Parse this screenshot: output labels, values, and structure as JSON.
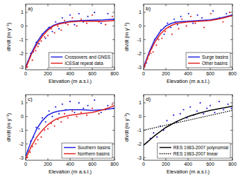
{
  "chart_data": [
    {
      "type": "scatter",
      "panel_label": "a)",
      "xlabel": "Elevation (m a.s.l.)",
      "ylabel": "dh/dt (m y⁻¹)",
      "xlim": [
        0,
        800
      ],
      "ylim": [
        -3.2,
        1.6
      ],
      "xticks": [
        0,
        200,
        400,
        600,
        800
      ],
      "yticks": [
        -3,
        -2,
        -1,
        0,
        1
      ],
      "grid": false,
      "legend": "lower right",
      "series": [
        {
          "type": "scatter",
          "color": "#e02020",
          "marker": "dot",
          "x": [
            15,
            40,
            60,
            90,
            110,
            140,
            170,
            200,
            230,
            260,
            290,
            320,
            350,
            380,
            420,
            460,
            500,
            550,
            600,
            660,
            720,
            780
          ],
          "values": [
            -3.0,
            -2.3,
            -2.5,
            -1.8,
            -1.5,
            -1.1,
            -0.8,
            -0.7,
            -0.2,
            -0.5,
            0.0,
            -0.3,
            0.4,
            0.1,
            0.6,
            0.0,
            0.5,
            0.2,
            0.8,
            0.3,
            0.1,
            0.7
          ]
        },
        {
          "type": "scatter",
          "color": "#2020e0",
          "marker": "dot",
          "x": [
            20,
            45,
            70,
            95,
            120,
            150,
            180,
            210,
            240,
            270,
            300,
            330,
            360,
            400,
            440,
            480,
            520,
            560,
            620,
            680,
            740,
            790
          ],
          "values": [
            -2.6,
            -2.0,
            -1.9,
            -1.2,
            -1.3,
            -0.6,
            -0.9,
            -0.1,
            -0.4,
            0.3,
            -0.2,
            0.6,
            0.2,
            0.8,
            0.1,
            0.9,
            0.3,
            0.7,
            1.0,
            0.2,
            0.9,
            0.5
          ]
        },
        {
          "type": "line",
          "name": "Crossovers and GNSS",
          "color": "#2020e0",
          "line_style": "solid",
          "x": [
            0,
            50,
            100,
            150,
            200,
            250,
            300,
            400,
            500,
            600,
            700,
            800
          ],
          "values": [
            -3.0,
            -2.0,
            -1.2,
            -0.6,
            -0.2,
            0.05,
            0.2,
            0.35,
            0.4,
            0.42,
            0.45,
            0.5
          ]
        },
        {
          "type": "line",
          "name": "ICESat repeat data",
          "color": "#e02020",
          "line_style": "solid",
          "x": [
            0,
            50,
            100,
            150,
            200,
            250,
            300,
            400,
            500,
            600,
            700,
            800
          ],
          "values": [
            -3.1,
            -2.1,
            -1.35,
            -0.75,
            -0.3,
            0.0,
            0.15,
            0.3,
            0.35,
            0.35,
            0.35,
            0.4
          ]
        }
      ]
    },
    {
      "type": "scatter",
      "panel_label": "b)",
      "xlabel": "Elevation (m a.s.l.)",
      "ylabel": "dh/dt (m y⁻¹)",
      "xlim": [
        0,
        800
      ],
      "ylim": [
        -3.2,
        1.6
      ],
      "xticks": [
        0,
        200,
        400,
        600,
        800
      ],
      "yticks": [
        -3,
        -2,
        -1,
        0,
        1
      ],
      "grid": false,
      "legend": "lower right",
      "series": [
        {
          "type": "scatter",
          "color": "#e02020",
          "marker": "dot",
          "x": [
            10,
            35,
            65,
            85,
            115,
            135,
            165,
            195,
            225,
            255,
            285,
            315,
            345,
            385,
            425,
            465,
            505,
            545,
            605,
            655,
            715,
            775
          ],
          "values": [
            -2.9,
            -2.4,
            -2.0,
            -1.9,
            -1.4,
            -1.0,
            -0.9,
            -0.4,
            -0.1,
            -0.6,
            0.3,
            -0.2,
            0.5,
            0.0,
            0.7,
            0.2,
            0.4,
            -0.1,
            0.9,
            0.5,
            0.3,
            1.0
          ]
        },
        {
          "type": "scatter",
          "color": "#2020e0",
          "marker": "dot",
          "x": [
            25,
            50,
            75,
            100,
            125,
            155,
            185,
            215,
            245,
            275,
            305,
            335,
            365,
            405,
            445,
            485,
            525,
            565,
            625,
            685,
            745,
            795
          ],
          "values": [
            -2.7,
            -2.1,
            -1.6,
            -1.0,
            -0.9,
            -0.3,
            -0.6,
            0.2,
            -0.1,
            0.5,
            0.1,
            0.7,
            0.3,
            0.9,
            0.2,
            0.8,
            0.6,
            0.4,
            1.1,
            0.6,
            0.9,
            0.8
          ]
        },
        {
          "type": "line",
          "name": "Surge basins",
          "color": "#2020e0",
          "line_style": "solid",
          "x": [
            0,
            50,
            100,
            150,
            200,
            250,
            300,
            400,
            500,
            600,
            700,
            800
          ],
          "values": [
            -3.0,
            -1.9,
            -1.0,
            -0.4,
            0.0,
            0.2,
            0.3,
            0.35,
            0.4,
            0.45,
            0.6,
            0.8
          ]
        },
        {
          "type": "line",
          "name": "Other basins",
          "color": "#e02020",
          "line_style": "solid",
          "x": [
            0,
            50,
            100,
            150,
            200,
            250,
            300,
            400,
            500,
            600,
            700,
            800
          ],
          "values": [
            -3.1,
            -2.0,
            -1.2,
            -0.6,
            -0.2,
            0.05,
            0.2,
            0.3,
            0.35,
            0.4,
            0.55,
            0.75
          ]
        }
      ]
    },
    {
      "type": "scatter",
      "panel_label": "c)",
      "xlabel": "Elevation (m a.s.l.)",
      "ylabel": "dh/dt (m y⁻¹)",
      "xlim": [
        0,
        800
      ],
      "ylim": [
        -3.2,
        1.6
      ],
      "xticks": [
        0,
        200,
        400,
        600,
        800
      ],
      "yticks": [
        -3,
        -2,
        -1,
        0,
        1
      ],
      "grid": false,
      "legend": "lower right",
      "series": [
        {
          "type": "scatter",
          "color": "#e02020",
          "marker": "dot",
          "x": [
            15,
            40,
            60,
            90,
            110,
            140,
            170,
            200,
            230,
            260,
            290,
            320,
            350,
            380,
            420,
            460,
            500,
            550,
            600,
            660,
            720,
            780
          ],
          "values": [
            -3.0,
            -2.6,
            -2.2,
            -2.0,
            -1.7,
            -1.5,
            -1.0,
            -0.9,
            -0.5,
            -0.7,
            -0.2,
            -0.4,
            0.2,
            -0.1,
            0.4,
            0.0,
            0.3,
            0.1,
            0.6,
            0.2,
            0.5,
            0.9
          ]
        },
        {
          "type": "scatter",
          "color": "#2020e0",
          "marker": "dot",
          "x": [
            20,
            45,
            70,
            95,
            120,
            150,
            180,
            210,
            240,
            270,
            300,
            330,
            360,
            400,
            440,
            480,
            520,
            560,
            620,
            680,
            740,
            790
          ],
          "values": [
            -2.5,
            -1.8,
            -1.5,
            -0.8,
            -0.9,
            -0.1,
            -0.4,
            0.4,
            0.0,
            0.7,
            0.2,
            0.9,
            0.5,
            1.1,
            0.3,
            1.0,
            0.6,
            0.8,
            1.2,
            0.3,
            0.8,
            0.6
          ]
        },
        {
          "type": "line",
          "name": "Southern basins",
          "color": "#2020e0",
          "line_style": "solid",
          "x": [
            0,
            50,
            100,
            150,
            200,
            250,
            300,
            400,
            500,
            600,
            700,
            800
          ],
          "values": [
            -2.9,
            -1.8,
            -0.9,
            -0.3,
            0.1,
            0.3,
            0.4,
            0.5,
            0.5,
            0.45,
            0.5,
            0.6
          ]
        },
        {
          "type": "line",
          "name": "Northern basins",
          "color": "#e02020",
          "line_style": "solid",
          "x": [
            0,
            50,
            100,
            150,
            200,
            250,
            300,
            400,
            500,
            600,
            700,
            800
          ],
          "values": [
            -3.1,
            -2.2,
            -1.5,
            -1.0,
            -0.6,
            -0.3,
            -0.1,
            0.1,
            0.2,
            0.3,
            0.5,
            0.8
          ]
        }
      ]
    },
    {
      "type": "scatter",
      "panel_label": "d)",
      "xlabel": "Elevation (m a.s.l.)",
      "ylabel": "dh/dt (m y⁻¹)",
      "xlim": [
        0,
        800
      ],
      "ylim": [
        -3.2,
        1.6
      ],
      "xticks": [
        0,
        200,
        400,
        600,
        800
      ],
      "yticks": [
        -3,
        -2,
        -1,
        0,
        1
      ],
      "grid": false,
      "legend": "lower right",
      "series": [
        {
          "type": "scatter",
          "color": "#2020e0",
          "marker": "dot",
          "x": [
            30,
            60,
            90,
            120,
            150,
            180,
            210,
            240,
            270,
            300,
            330,
            360,
            390,
            420,
            450,
            480,
            510,
            540,
            570,
            600,
            640,
            680,
            720,
            760,
            790
          ],
          "values": [
            -1.9,
            -1.6,
            -1.2,
            -1.5,
            -0.7,
            -1.0,
            -0.3,
            -0.6,
            0.1,
            -0.4,
            0.2,
            0.5,
            -0.1,
            0.7,
            0.1,
            0.4,
            1.0,
            0.2,
            0.6,
            0.8,
            0.3,
            1.1,
            0.5,
            0.9,
            0.6
          ]
        },
        {
          "type": "line",
          "name": "RES 1983-2007 polynomial",
          "color": "#000000",
          "line_style": "solid",
          "x": [
            0,
            100,
            200,
            300,
            400,
            500,
            600,
            700,
            800
          ],
          "values": [
            -2.1,
            -1.4,
            -0.8,
            -0.35,
            0.0,
            0.25,
            0.45,
            0.6,
            0.75
          ]
        },
        {
          "type": "line",
          "name": "RES 1983-2007 linear",
          "color": "#000000",
          "line_style": "dotted",
          "x": [
            0,
            800
          ],
          "values": [
            -1.0,
            0.45
          ]
        }
      ]
    }
  ]
}
